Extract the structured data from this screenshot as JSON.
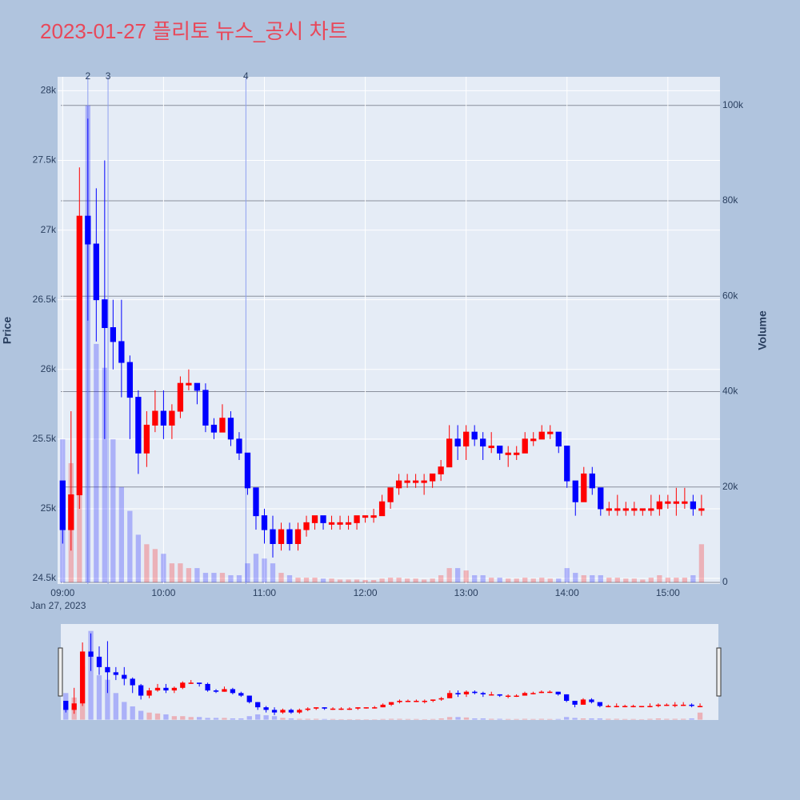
{
  "chart_data": {
    "type": "candlestick",
    "title": "2023-01-27 플리토 뉴스_공시 차트",
    "y_label": "Price",
    "y2_label": "Volume",
    "x_date_label": "Jan 27, 2023",
    "increasing_color": "#ff0000",
    "decreasing_color": "#0000ff",
    "x": [
      "2023-01-27 09:00",
      "2023-01-27 09:05",
      "2023-01-27 09:10",
      "2023-01-27 09:15",
      "2023-01-27 09:20",
      "2023-01-27 09:25",
      "2023-01-27 09:30",
      "2023-01-27 09:35",
      "2023-01-27 09:40",
      "2023-01-27 09:45",
      "2023-01-27 09:50",
      "2023-01-27 09:55",
      "2023-01-27 10:00",
      "2023-01-27 10:05",
      "2023-01-27 10:10",
      "2023-01-27 10:15",
      "2023-01-27 10:20",
      "2023-01-27 10:25",
      "2023-01-27 10:30",
      "2023-01-27 10:35",
      "2023-01-27 10:40",
      "2023-01-27 10:45",
      "2023-01-27 10:50",
      "2023-01-27 10:55",
      "2023-01-27 11:00",
      "2023-01-27 11:05",
      "2023-01-27 11:10",
      "2023-01-27 11:15",
      "2023-01-27 11:20",
      "2023-01-27 11:25",
      "2023-01-27 11:30",
      "2023-01-27 11:35",
      "2023-01-27 11:40",
      "2023-01-27 11:45",
      "2023-01-27 11:50",
      "2023-01-27 11:55",
      "2023-01-27 12:00",
      "2023-01-27 12:05",
      "2023-01-27 12:10",
      "2023-01-27 12:15",
      "2023-01-27 12:20",
      "2023-01-27 12:25",
      "2023-01-27 12:30",
      "2023-01-27 12:35",
      "2023-01-27 12:40",
      "2023-01-27 12:45",
      "2023-01-27 12:50",
      "2023-01-27 12:55",
      "2023-01-27 13:00",
      "2023-01-27 13:05",
      "2023-01-27 13:10",
      "2023-01-27 13:15",
      "2023-01-27 13:20",
      "2023-01-27 13:25",
      "2023-01-27 13:30",
      "2023-01-27 13:35",
      "2023-01-27 13:40",
      "2023-01-27 13:45",
      "2023-01-27 13:50",
      "2023-01-27 13:55",
      "2023-01-27 14:00",
      "2023-01-27 14:05",
      "2023-01-27 14:10",
      "2023-01-27 14:15",
      "2023-01-27 14:20",
      "2023-01-27 14:25",
      "2023-01-27 14:30",
      "2023-01-27 14:35",
      "2023-01-27 14:40",
      "2023-01-27 14:45",
      "2023-01-27 14:50",
      "2023-01-27 14:55",
      "2023-01-27 15:00",
      "2023-01-27 15:05",
      "2023-01-27 15:10",
      "2023-01-27 15:15",
      "2023-01-27 15:20"
    ],
    "open": [
      25200,
      24850,
      25100,
      27100,
      26900,
      26500,
      26300,
      26200,
      26050,
      25800,
      25400,
      25600,
      25700,
      25600,
      25700,
      25900,
      25900,
      25850,
      25600,
      25550,
      25650,
      25500,
      25400,
      25150,
      24950,
      24850,
      24750,
      24850,
      24750,
      24850,
      24900,
      24950,
      24900,
      24900,
      24900,
      24900,
      24950,
      24950,
      24950,
      25050,
      25150,
      25200,
      25200,
      25200,
      25200,
      25250,
      25300,
      25500,
      25450,
      25550,
      25500,
      25450,
      25450,
      25400,
      25400,
      25400,
      25500,
      25500,
      25550,
      25550,
      25450,
      25200,
      25050,
      25250,
      25150,
      25000,
      25000,
      25000,
      25000,
      25000,
      25000,
      25000,
      25050,
      25050,
      25050,
      25050,
      25000
    ],
    "high": [
      25200,
      25700,
      27450,
      27800,
      27300,
      27500,
      26500,
      26500,
      26100,
      25850,
      25700,
      25850,
      25850,
      25750,
      25950,
      26000,
      25900,
      25900,
      25650,
      25750,
      25700,
      25550,
      25400,
      25150,
      25000,
      24950,
      24900,
      24900,
      24900,
      24950,
      24950,
      24950,
      24950,
      24950,
      24950,
      24950,
      24950,
      25000,
      25100,
      25150,
      25250,
      25250,
      25250,
      25250,
      25250,
      25350,
      25600,
      25600,
      25600,
      25600,
      25550,
      25550,
      25450,
      25450,
      25450,
      25550,
      25550,
      25600,
      25600,
      25550,
      25450,
      25200,
      25300,
      25300,
      25150,
      25050,
      25100,
      25050,
      25050,
      25000,
      25100,
      25100,
      25100,
      25150,
      25150,
      25100,
      25100
    ],
    "low": [
      24750,
      24700,
      25000,
      26350,
      26200,
      25500,
      26000,
      25800,
      25500,
      25250,
      25300,
      25550,
      25500,
      25500,
      25650,
      25850,
      25750,
      25550,
      25500,
      25550,
      25450,
      25350,
      25100,
      24850,
      24750,
      24650,
      24700,
      24700,
      24700,
      24800,
      24850,
      24850,
      24850,
      24850,
      24850,
      24850,
      24900,
      24900,
      24950,
      25000,
      25100,
      25150,
      25150,
      25100,
      25150,
      25200,
      25300,
      25350,
      25350,
      25450,
      25350,
      25400,
      25350,
      25300,
      25350,
      25400,
      25450,
      25500,
      25500,
      25400,
      25150,
      24950,
      25050,
      25100,
      24950,
      24950,
      24950,
      24950,
      24950,
      24950,
      24950,
      24950,
      25000,
      24950,
      25000,
      24950,
      24950
    ],
    "close": [
      24850,
      25100,
      27100,
      26900,
      26500,
      26300,
      26200,
      26050,
      25800,
      25400,
      25600,
      25700,
      25600,
      25700,
      25900,
      25900,
      25850,
      25600,
      25550,
      25650,
      25500,
      25400,
      25150,
      24950,
      24850,
      24750,
      24850,
      24750,
      24850,
      24900,
      24950,
      24900,
      24900,
      24900,
      24900,
      24950,
      24950,
      24950,
      25050,
      25150,
      25200,
      25200,
      25200,
      25200,
      25250,
      25300,
      25500,
      25450,
      25550,
      25500,
      25450,
      25450,
      25400,
      25400,
      25400,
      25500,
      25500,
      25550,
      25550,
      25450,
      25200,
      25050,
      25250,
      25150,
      25000,
      25000,
      25000,
      25000,
      25000,
      25000,
      25000,
      25050,
      25050,
      25050,
      25050,
      25000,
      25000
    ],
    "volume": [
      30000,
      25000,
      60000,
      100000,
      50000,
      45000,
      30000,
      20000,
      15000,
      10000,
      8000,
      7000,
      6000,
      4000,
      4000,
      3000,
      3000,
      2000,
      2000,
      2000,
      1500,
      1500,
      4000,
      6000,
      5000,
      4000,
      2000,
      1500,
      1000,
      1000,
      1000,
      800,
      800,
      600,
      600,
      600,
      500,
      500,
      800,
      1000,
      1000,
      800,
      800,
      600,
      800,
      1500,
      3000,
      3000,
      2500,
      1500,
      1500,
      1000,
      1000,
      800,
      800,
      1000,
      800,
      1000,
      800,
      800,
      3000,
      2000,
      1500,
      1500,
      1500,
      1000,
      1000,
      800,
      800,
      600,
      1000,
      1500,
      1000,
      1000,
      1000,
      1500,
      8000
    ],
    "markers": [
      {
        "x": "2023-01-27 09:15",
        "label": "2"
      },
      {
        "x": "2023-01-27 09:27",
        "label": "3"
      },
      {
        "x": "2023-01-27 10:49",
        "label": "4"
      }
    ],
    "xlim": [
      "2023-01-27 08:57",
      "2023-01-27 15:31"
    ],
    "xticks": [
      {
        "value": "2023-01-27 09:00",
        "label": "09:00"
      },
      {
        "value": "2023-01-27 10:00",
        "label": "10:00"
      },
      {
        "value": "2023-01-27 11:00",
        "label": "11:00"
      },
      {
        "value": "2023-01-27 12:00",
        "label": "12:00"
      },
      {
        "value": "2023-01-27 13:00",
        "label": "13:00"
      },
      {
        "value": "2023-01-27 14:00",
        "label": "14:00"
      },
      {
        "value": "2023-01-27 15:00",
        "label": "15:00"
      }
    ],
    "ylim": [
      24460,
      28100
    ],
    "yticks": [
      {
        "value": 24500,
        "label": "24.5k"
      },
      {
        "value": 25000,
        "label": "25k"
      },
      {
        "value": 25500,
        "label": "25.5k"
      },
      {
        "value": 26000,
        "label": "26k"
      },
      {
        "value": 26500,
        "label": "26.5k"
      },
      {
        "value": 27000,
        "label": "27k"
      },
      {
        "value": 27500,
        "label": "27.5k"
      },
      {
        "value": 28000,
        "label": "28k"
      }
    ],
    "y2lim": [
      -335,
      106000
    ],
    "y2ticks": [
      0,
      {
        "value": 20000,
        "label": "20k"
      },
      {
        "value": 40000,
        "label": "40k"
      },
      {
        "value": 60000,
        "label": "60k"
      },
      {
        "value": 80000,
        "label": "80k"
      },
      {
        "value": 100000,
        "label": "100k"
      }
    ],
    "grid": true,
    "rangeslider": true
  }
}
